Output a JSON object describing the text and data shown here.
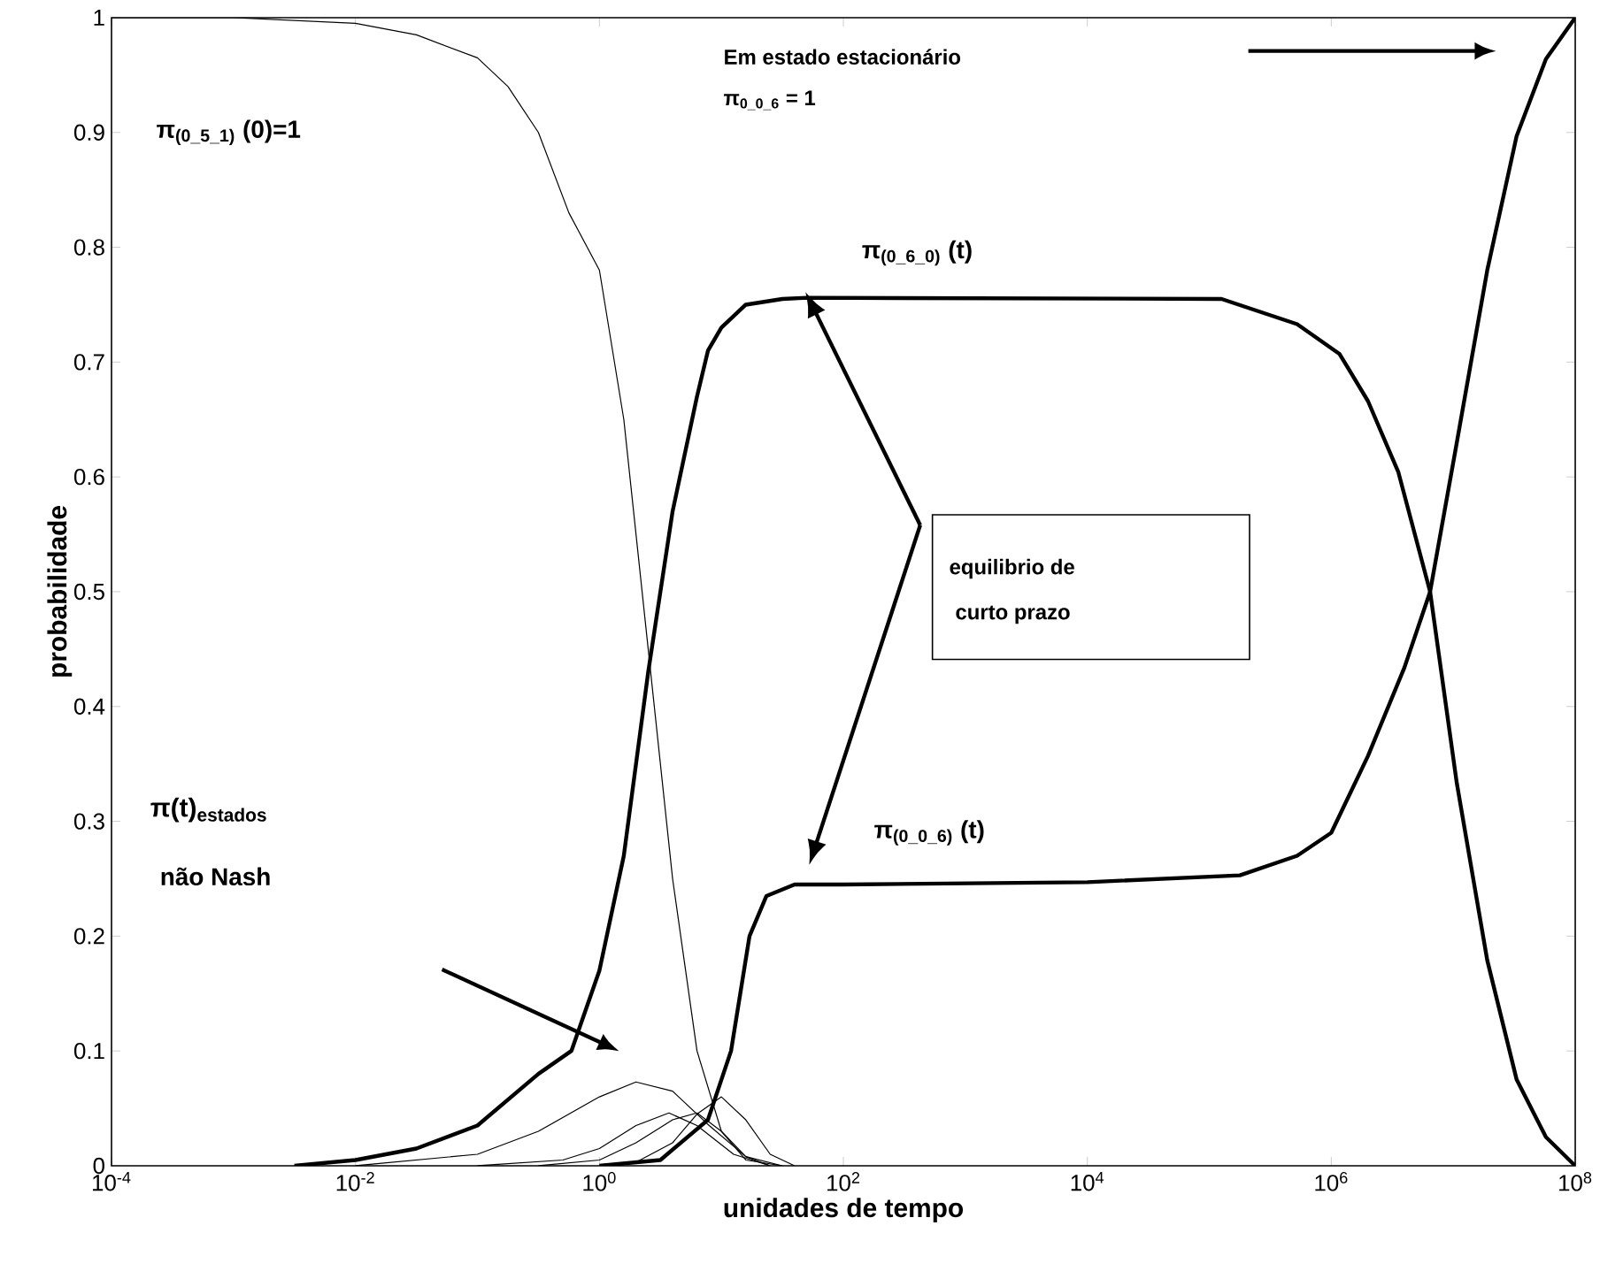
{
  "chart_data": {
    "type": "line",
    "xlabel": "unidades de tempo",
    "ylabel": "probabilidade",
    "log": "x",
    "xlim": [
      0.0001,
      100000000
    ],
    "ylim": [
      0,
      1
    ],
    "xticks": [
      {
        "value": 0.0001,
        "label": "10$^{-4}$"
      },
      {
        "value": 0.01,
        "label": "10$^{-2}$"
      },
      {
        "value": 1,
        "label": "10$^{0}$"
      },
      {
        "value": 100,
        "label": "10$^{2}$"
      },
      {
        "value": 10000,
        "label": "10$^{4}$"
      },
      {
        "value": 1000000,
        "label": "10$^{6}$"
      },
      {
        "value": 100000000,
        "label": "10$^{8}$"
      }
    ],
    "yticks": [
      0,
      0.1,
      0.2,
      0.3,
      0.4,
      0.5,
      0.6,
      0.7,
      0.8,
      0.9,
      1
    ],
    "series": [
      {
        "color": "#000000",
        "x": [
          0.0001,
          0.001,
          0.01,
          0.0316,
          0.1,
          0.178,
          0.316,
          0.562,
          1,
          1.585,
          2.512,
          3.981,
          6.31,
          10,
          15.85,
          31.62
        ],
        "values": [
          1,
          1,
          0.995,
          0.985,
          0.965,
          0.94,
          0.9,
          0.83,
          0.78,
          0.65,
          0.45,
          0.25,
          0.1,
          0.03,
          0.005,
          0
        ]
      },
      {
        "name": "π$_{(0_6_0)}$ (t)",
        "color": "#000000",
        "x": [
          0.00316,
          0.01,
          0.0316,
          0.1,
          0.316,
          0.589,
          1,
          1.585,
          2.512,
          3.981,
          6.31,
          7.76,
          10,
          15.85,
          31.62,
          50.12,
          126000,
          525000,
          1170000,
          2000000,
          3550000,
          6460000,
          10700000,
          19000000,
          33100000,
          57500000,
          100000000
        ],
        "values": [
          0,
          0.005,
          0.015,
          0.035,
          0.08,
          0.1,
          0.17,
          0.27,
          0.43,
          0.57,
          0.67,
          0.71,
          0.73,
          0.75,
          0.755,
          0.756,
          0.755,
          0.733,
          0.707,
          0.666,
          0.604,
          0.5,
          0.333,
          0.179,
          0.075,
          0.025,
          0
        ]
      },
      {
        "name": "π$_{(0_0_6)}$ (t)",
        "color": "#000000",
        "x": [
          1,
          3.162,
          7.76,
          12.0,
          17.0,
          23.4,
          39.81,
          100,
          10000,
          178000,
          525000,
          1000000,
          2000000,
          3980000,
          6460000,
          10700000,
          19000000,
          33100000,
          57500000,
          100000000
        ],
        "values": [
          0,
          0.005,
          0.04,
          0.1,
          0.2,
          0.235,
          0.245,
          0.245,
          0.247,
          0.253,
          0.27,
          0.29,
          0.357,
          0.434,
          0.5,
          0.63,
          0.78,
          0.897,
          0.964,
          1
        ]
      },
      {
        "color": "#000000",
        "x": [
          0.01,
          0.1,
          0.316,
          1,
          1.995,
          3.981,
          7.943,
          15.85,
          31.62
        ],
        "values": [
          0,
          0.01,
          0.03,
          0.06,
          0.073,
          0.065,
          0.035,
          0.008,
          0
        ]
      },
      {
        "color": "#000000",
        "x": [
          0.1,
          0.501,
          1,
          1.995,
          3.715,
          6.31,
          12.59,
          25.12
        ],
        "values": [
          0,
          0.005,
          0.015,
          0.035,
          0.046,
          0.035,
          0.01,
          0
        ]
      },
      {
        "color": "#000000",
        "x": [
          0.316,
          1,
          1.995,
          3.981,
          6.31,
          10,
          15.85,
          25.12
        ],
        "values": [
          0,
          0.005,
          0.02,
          0.04,
          0.046,
          0.03,
          0.008,
          0
        ]
      },
      {
        "color": "#000000",
        "x": [
          1,
          1.995,
          3.981,
          6.31,
          10,
          15.85,
          25.12,
          39.81
        ],
        "values": [
          0,
          0.003,
          0.02,
          0.045,
          0.06,
          0.04,
          0.01,
          0
        ]
      }
    ],
    "annotations": [
      "π$_{(0_5_1)}$ (0)=1",
      "Em estado estacionário",
      "π$_{0_0_6}$ = 1",
      "π(t)$_{estados}$",
      "não Nash",
      "equilibrio de",
      "curto prazo"
    ]
  }
}
